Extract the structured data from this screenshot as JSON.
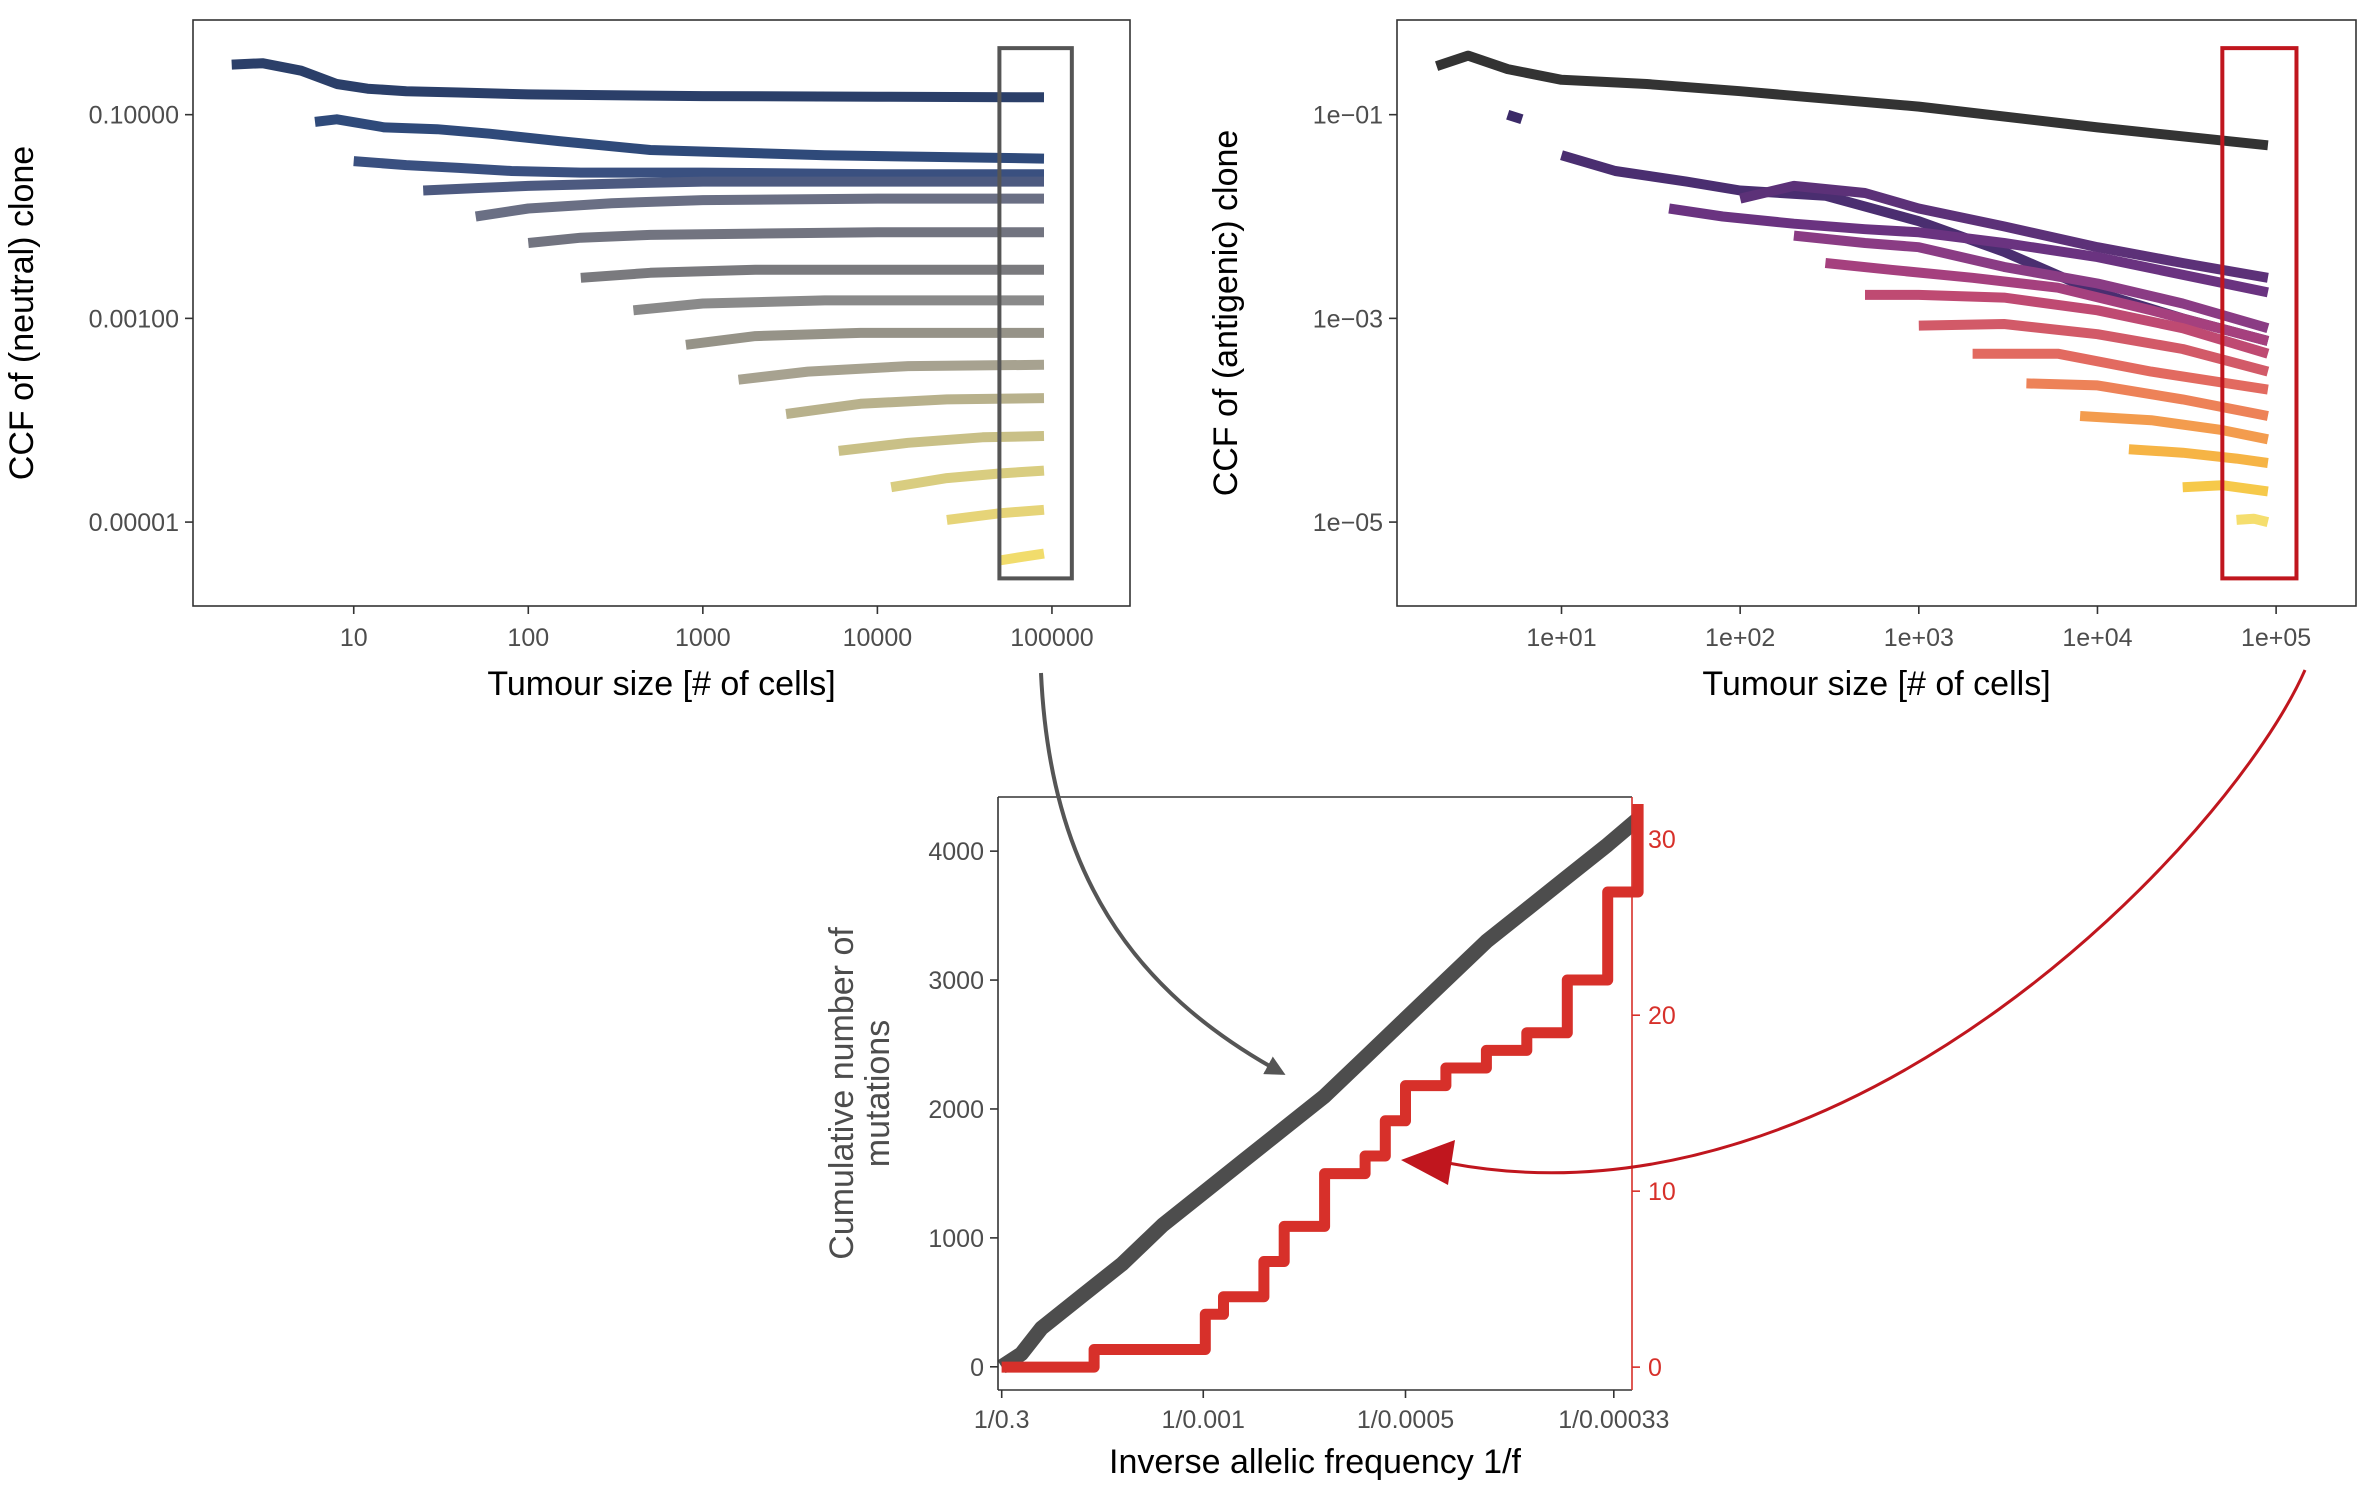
{
  "colors": {
    "neutral_box": "#555555",
    "antigenic_box": "#c0161e",
    "neutral_arrow": "#555555",
    "antigenic_arrow": "#c0161e",
    "mutations_line": "#4d4d4d",
    "antigenic_line": "#d7302a",
    "right_axis": "#d7302a"
  },
  "chart_data": [
    {
      "type": "line",
      "xlabel": "Tumour size [# of cells]",
      "ylabel": "CCF of (neutral) clone",
      "x_scale": "log",
      "y_scale": "log",
      "xlim": [
        1.2,
        280000
      ],
      "ylim": [
        1.5e-06,
        0.85
      ],
      "x_ticks": [
        10,
        100,
        1000,
        10000,
        100000
      ],
      "x_tick_labels": [
        "10",
        "100",
        "1000",
        "10000",
        "100000"
      ],
      "y_ticks": [
        0.1,
        0.001,
        1e-05
      ],
      "y_tick_labels": [
        "0.10000",
        "0.00100",
        "0.00001"
      ],
      "grid": false,
      "highlight_box": {
        "x_range": [
          50000,
          130000
        ],
        "y_range": [
          2.8e-06,
          0.45
        ]
      },
      "series": [
        {
          "color": "#2b3f69",
          "x": [
            2,
            3,
            5,
            8,
            12,
            20,
            40,
            100,
            1000,
            10000,
            90000
          ],
          "y": [
            0.31,
            0.32,
            0.27,
            0.2,
            0.18,
            0.17,
            0.165,
            0.158,
            0.152,
            0.15,
            0.148
          ]
        },
        {
          "color": "#2f4a7a",
          "x": [
            6,
            8,
            15,
            30,
            60,
            150,
            500,
            5000,
            90000
          ],
          "y": [
            0.085,
            0.09,
            0.075,
            0.072,
            0.065,
            0.055,
            0.045,
            0.04,
            0.037
          ]
        },
        {
          "color": "#3a5080",
          "x": [
            10,
            20,
            40,
            80,
            200,
            1000,
            10000,
            90000
          ],
          "y": [
            0.035,
            0.032,
            0.03,
            0.028,
            0.027,
            0.027,
            0.026,
            0.026
          ]
        },
        {
          "color": "#4d5a80",
          "x": [
            25,
            50,
            100,
            300,
            1000,
            10000,
            90000
          ],
          "y": [
            0.018,
            0.019,
            0.02,
            0.021,
            0.022,
            0.022,
            0.022
          ]
        },
        {
          "color": "#6a6f84",
          "x": [
            50,
            100,
            300,
            1000,
            10000,
            90000
          ],
          "y": [
            0.01,
            0.012,
            0.0135,
            0.0145,
            0.015,
            0.015
          ]
        },
        {
          "color": "#727480",
          "x": [
            100,
            200,
            500,
            2000,
            10000,
            90000
          ],
          "y": [
            0.0055,
            0.0062,
            0.0066,
            0.0068,
            0.007,
            0.007
          ]
        },
        {
          "color": "#7a7a7e",
          "x": [
            200,
            500,
            2000,
            10000,
            90000
          ],
          "y": [
            0.0025,
            0.0028,
            0.003,
            0.003,
            0.003
          ]
        },
        {
          "color": "#8a8a8a",
          "x": [
            400,
            1000,
            5000,
            90000
          ],
          "y": [
            0.0012,
            0.0014,
            0.0015,
            0.0015
          ]
        },
        {
          "color": "#969388",
          "x": [
            800,
            2000,
            8000,
            90000
          ],
          "y": [
            0.00055,
            0.00067,
            0.00072,
            0.00072
          ]
        },
        {
          "color": "#a7a290",
          "x": [
            1600,
            4000,
            15000,
            90000
          ],
          "y": [
            0.00025,
            0.0003,
            0.00034,
            0.00035
          ]
        },
        {
          "color": "#b8b18c",
          "x": [
            3000,
            8000,
            25000,
            90000
          ],
          "y": [
            0.000115,
            0.000145,
            0.00016,
            0.000165
          ]
        },
        {
          "color": "#c9c087",
          "x": [
            6000,
            15000,
            40000,
            90000
          ],
          "y": [
            5e-05,
            6e-05,
            6.8e-05,
            7e-05
          ]
        },
        {
          "color": "#d9cd80",
          "x": [
            12000,
            25000,
            50000,
            90000
          ],
          "y": [
            2.2e-05,
            2.7e-05,
            3e-05,
            3.2e-05
          ]
        },
        {
          "color": "#e6d478",
          "x": [
            25000,
            50000,
            90000
          ],
          "y": [
            1.05e-05,
            1.22e-05,
            1.32e-05
          ]
        },
        {
          "color": "#f1dc6c",
          "x": [
            50000,
            70000,
            90000
          ],
          "y": [
            4.2e-06,
            4.6e-06,
            4.9e-06
          ]
        }
      ]
    },
    {
      "type": "line",
      "xlabel": "Tumour size [# of cells]",
      "ylabel": "CCF of (antigenic) clone",
      "x_scale": "log",
      "y_scale": "log",
      "xlim": [
        1.2,
        280000
      ],
      "ylim": [
        1.5e-06,
        0.85
      ],
      "x_ticks": [
        10,
        100,
        1000,
        10000,
        100000
      ],
      "x_tick_labels": [
        "1e+01",
        "1e+02",
        "1e+03",
        "1e+04",
        "1e+05"
      ],
      "y_ticks": [
        0.1,
        0.001,
        1e-05
      ],
      "y_tick_labels": [
        "1e−01",
        "1e−03",
        "1e−05"
      ],
      "grid": false,
      "highlight_box": {
        "x_range": [
          50000,
          130000
        ],
        "y_range": [
          2.8e-06,
          0.45
        ]
      },
      "series": [
        {
          "color": "#333333",
          "x": [
            2,
            3,
            5,
            10,
            30,
            100,
            1000,
            10000,
            90000
          ],
          "y": [
            0.3,
            0.38,
            0.28,
            0.22,
            0.2,
            0.17,
            0.12,
            0.075,
            0.05
          ]
        },
        {
          "color": "#3b2a68",
          "x": [
            5,
            6
          ],
          "y": [
            0.1,
            0.09
          ]
        },
        {
          "color": "#4a2e70",
          "x": [
            10,
            20,
            50,
            100,
            300,
            1000,
            3000,
            10000,
            30000,
            90000
          ],
          "y": [
            0.04,
            0.028,
            0.022,
            0.018,
            0.016,
            0.009,
            0.0045,
            0.0018,
            0.001,
            0.0006
          ]
        },
        {
          "color": "#5c3178",
          "x": [
            100,
            200,
            500,
            1000,
            3000,
            10000,
            30000,
            90000
          ],
          "y": [
            0.015,
            0.02,
            0.017,
            0.012,
            0.008,
            0.005,
            0.0035,
            0.0025
          ]
        },
        {
          "color": "#6a3380",
          "x": [
            40,
            80,
            200,
            500,
            1000,
            3000,
            10000,
            90000
          ],
          "y": [
            0.012,
            0.01,
            0.0085,
            0.0075,
            0.007,
            0.0055,
            0.004,
            0.0018
          ]
        },
        {
          "color": "#8a3c84",
          "x": [
            200,
            500,
            1000,
            3000,
            10000,
            30000,
            90000
          ],
          "y": [
            0.0065,
            0.0055,
            0.005,
            0.0032,
            0.0022,
            0.0014,
            0.0008
          ]
        },
        {
          "color": "#a5407e",
          "x": [
            300,
            700,
            2000,
            6000,
            20000,
            90000
          ],
          "y": [
            0.0035,
            0.003,
            0.0025,
            0.002,
            0.0012,
            0.0006
          ]
        },
        {
          "color": "#bf4a72",
          "x": [
            500,
            1000,
            3000,
            10000,
            30000,
            90000
          ],
          "y": [
            0.0017,
            0.0017,
            0.0016,
            0.0012,
            0.0008,
            0.00045
          ]
        },
        {
          "color": "#d25a68",
          "x": [
            1000,
            3000,
            10000,
            30000,
            90000
          ],
          "y": [
            0.00085,
            0.00088,
            0.0007,
            0.0005,
            0.0003
          ]
        },
        {
          "color": "#e26a60",
          "x": [
            2000,
            6000,
            20000,
            90000
          ],
          "y": [
            0.00045,
            0.00045,
            0.0003,
            0.0002
          ]
        },
        {
          "color": "#ed8258",
          "x": [
            4000,
            10000,
            30000,
            90000
          ],
          "y": [
            0.00023,
            0.00022,
            0.00016,
            0.00011
          ]
        },
        {
          "color": "#f39c4e",
          "x": [
            8000,
            20000,
            50000,
            90000
          ],
          "y": [
            0.00011,
            0.0001,
            8e-05,
            6.5e-05
          ]
        },
        {
          "color": "#f6b445",
          "x": [
            15000,
            30000,
            60000,
            90000
          ],
          "y": [
            5.2e-05,
            4.8e-05,
            4.2e-05,
            3.8e-05
          ]
        },
        {
          "color": "#f6c94a",
          "x": [
            30000,
            50000,
            90000
          ],
          "y": [
            2.2e-05,
            2.3e-05,
            2e-05
          ]
        },
        {
          "color": "#f5de6e",
          "x": [
            60000,
            75000,
            90000
          ],
          "y": [
            1.05e-05,
            1.08e-05,
            1e-05
          ]
        }
      ]
    },
    {
      "type": "line",
      "xlabel": "Inverse allelic frequency 1/f",
      "ylabel": "Cumulative number of mutations",
      "ylim": [
        -180,
        4420
      ],
      "y_ticks": [
        0,
        1000,
        2000,
        3000,
        4000
      ],
      "y2_ticks": [
        0,
        10,
        20,
        30
      ],
      "y2lim": [
        -1.3,
        32.4
      ],
      "xlim": [
        -15,
        3120
      ],
      "x_ticks": [
        3.33,
        1000,
        2000,
        3030
      ],
      "x_tick_labels": [
        "1/0.3",
        "1/0.001",
        "1/0.0005",
        "1/0.00033"
      ],
      "grid": false,
      "series": [
        {
          "color": "#4d4d4d",
          "axis": "left",
          "x": [
            3,
            100,
            200,
            400,
            600,
            800,
            1000,
            1200,
            1400,
            1600,
            1800,
            2000,
            2200,
            2400,
            2600,
            2800,
            3000,
            3150
          ],
          "y": [
            0,
            100,
            300,
            550,
            800,
            1100,
            1350,
            1600,
            1850,
            2100,
            2400,
            2700,
            3000,
            3300,
            3550,
            3800,
            4050,
            4250
          ]
        },
        {
          "color": "#d7302a",
          "axis": "right",
          "x": [
            3,
            450,
            460,
            1000,
            1010,
            1100,
            1300,
            1400,
            1600,
            1800,
            1900,
            2000,
            2200,
            2400,
            2600,
            2800,
            3000,
            3150
          ],
          "y": [
            0,
            0,
            1,
            1,
            3,
            4,
            6,
            8,
            11,
            12,
            14,
            16,
            17,
            18,
            19,
            22,
            27,
            32
          ]
        }
      ]
    }
  ]
}
